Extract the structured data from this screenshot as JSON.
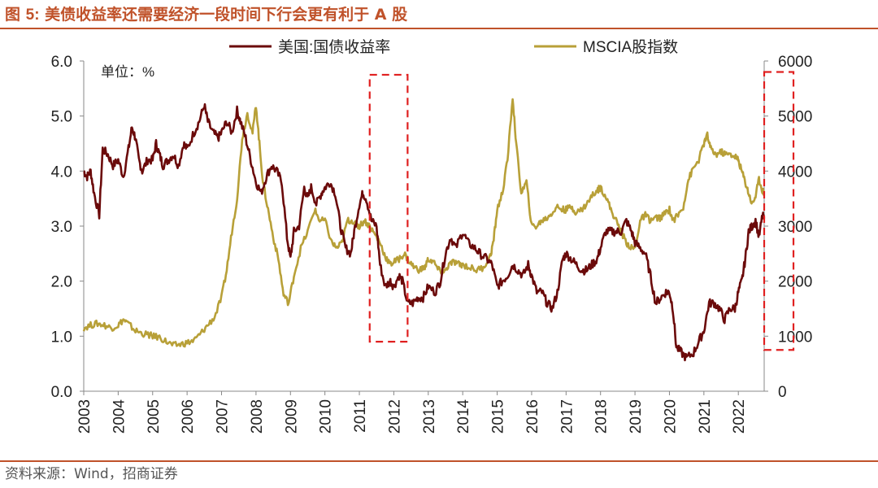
{
  "figure": {
    "title_prefix": "图 ",
    "title_number": "5:",
    "title_text": " 美债收益率还需要经济一段时间下行会更有利于 A 股",
    "source": "资料来源：Wind，招商证券"
  },
  "colors": {
    "accent": "#C0522A",
    "us_yield": "#6B0A0A",
    "msci": "#B8A038",
    "highlight_box": "#E02020"
  },
  "chart_data": {
    "type": "line",
    "unit_label": "单位：%",
    "legend_position": "top",
    "grid": false,
    "x_ticks": [
      "2003",
      "2004",
      "2005",
      "2006",
      "2007",
      "2008",
      "2009",
      "2010",
      "2011",
      "2012",
      "2013",
      "2014",
      "2015",
      "2016",
      "2017",
      "2018",
      "2019",
      "2020",
      "2021",
      "2022"
    ],
    "xlim": [
      2003.0,
      2022.75
    ],
    "y_left": {
      "ticks": [
        "0.0",
        "1.0",
        "2.0",
        "3.0",
        "4.0",
        "5.0",
        "6.0"
      ],
      "range": [
        0,
        6
      ]
    },
    "y_right": {
      "ticks": [
        "0",
        "1000",
        "2000",
        "3000",
        "4000",
        "5000",
        "6000"
      ],
      "range": [
        0,
        6000
      ]
    },
    "series": [
      {
        "name": "美国:国债收益率",
        "axis": "left",
        "points": [
          [
            2003.0,
            4.0
          ],
          [
            2003.1,
            3.9
          ],
          [
            2003.2,
            4.0
          ],
          [
            2003.3,
            3.6
          ],
          [
            2003.45,
            3.2
          ],
          [
            2003.55,
            4.4
          ],
          [
            2003.7,
            4.3
          ],
          [
            2003.85,
            4.1
          ],
          [
            2004.0,
            4.2
          ],
          [
            2004.15,
            3.9
          ],
          [
            2004.3,
            4.4
          ],
          [
            2004.4,
            4.8
          ],
          [
            2004.5,
            4.6
          ],
          [
            2004.6,
            4.2
          ],
          [
            2004.7,
            4.0
          ],
          [
            2004.85,
            4.2
          ],
          [
            2005.0,
            4.2
          ],
          [
            2005.1,
            4.5
          ],
          [
            2005.2,
            4.3
          ],
          [
            2005.3,
            4.1
          ],
          [
            2005.45,
            4.2
          ],
          [
            2005.6,
            4.3
          ],
          [
            2005.75,
            4.1
          ],
          [
            2005.9,
            4.5
          ],
          [
            2006.0,
            4.4
          ],
          [
            2006.2,
            4.7
          ],
          [
            2006.35,
            4.9
          ],
          [
            2006.5,
            5.2
          ],
          [
            2006.6,
            4.9
          ],
          [
            2006.75,
            4.7
          ],
          [
            2006.9,
            4.6
          ],
          [
            2007.0,
            4.7
          ],
          [
            2007.15,
            4.9
          ],
          [
            2007.3,
            4.7
          ],
          [
            2007.45,
            5.1
          ],
          [
            2007.55,
            4.9
          ],
          [
            2007.7,
            4.6
          ],
          [
            2007.85,
            4.2
          ],
          [
            2008.0,
            3.8
          ],
          [
            2008.15,
            3.6
          ],
          [
            2008.3,
            3.9
          ],
          [
            2008.45,
            4.1
          ],
          [
            2008.6,
            4.0
          ],
          [
            2008.75,
            3.8
          ],
          [
            2008.9,
            2.8
          ],
          [
            2009.0,
            2.4
          ],
          [
            2009.1,
            2.9
          ],
          [
            2009.25,
            3.0
          ],
          [
            2009.4,
            3.7
          ],
          [
            2009.5,
            3.5
          ],
          [
            2009.6,
            3.7
          ],
          [
            2009.75,
            3.4
          ],
          [
            2009.9,
            3.6
          ],
          [
            2010.0,
            3.7
          ],
          [
            2010.15,
            3.8
          ],
          [
            2010.3,
            3.6
          ],
          [
            2010.45,
            3.0
          ],
          [
            2010.6,
            2.6
          ],
          [
            2010.75,
            2.5
          ],
          [
            2010.85,
            2.9
          ],
          [
            2011.0,
            3.4
          ],
          [
            2011.1,
            3.6
          ],
          [
            2011.2,
            3.5
          ],
          [
            2011.35,
            3.1
          ],
          [
            2011.5,
            3.0
          ],
          [
            2011.6,
            2.3
          ],
          [
            2011.75,
            1.9
          ],
          [
            2011.9,
            2.0
          ],
          [
            2012.0,
            1.9
          ],
          [
            2012.15,
            2.1
          ],
          [
            2012.25,
            2.0
          ],
          [
            2012.4,
            1.6
          ],
          [
            2012.55,
            1.6
          ],
          [
            2012.7,
            1.7
          ],
          [
            2012.85,
            1.7
          ],
          [
            2013.0,
            1.9
          ],
          [
            2013.2,
            1.8
          ],
          [
            2013.35,
            2.0
          ],
          [
            2013.5,
            2.5
          ],
          [
            2013.65,
            2.8
          ],
          [
            2013.8,
            2.6
          ],
          [
            2014.0,
            2.9
          ],
          [
            2014.15,
            2.7
          ],
          [
            2014.35,
            2.6
          ],
          [
            2014.5,
            2.5
          ],
          [
            2014.7,
            2.4
          ],
          [
            2014.85,
            2.3
          ],
          [
            2015.0,
            1.9
          ],
          [
            2015.15,
            2.0
          ],
          [
            2015.3,
            2.1
          ],
          [
            2015.45,
            2.3
          ],
          [
            2015.6,
            2.2
          ],
          [
            2015.75,
            2.1
          ],
          [
            2015.9,
            2.3
          ],
          [
            2016.0,
            2.1
          ],
          [
            2016.15,
            1.8
          ],
          [
            2016.3,
            1.8
          ],
          [
            2016.45,
            1.6
          ],
          [
            2016.6,
            1.5
          ],
          [
            2016.75,
            1.8
          ],
          [
            2016.9,
            2.4
          ],
          [
            2017.0,
            2.5
          ],
          [
            2017.15,
            2.4
          ],
          [
            2017.3,
            2.3
          ],
          [
            2017.45,
            2.2
          ],
          [
            2017.6,
            2.2
          ],
          [
            2017.75,
            2.3
          ],
          [
            2017.9,
            2.4
          ],
          [
            2018.0,
            2.6
          ],
          [
            2018.15,
            2.9
          ],
          [
            2018.3,
            2.9
          ],
          [
            2018.45,
            2.9
          ],
          [
            2018.6,
            2.9
          ],
          [
            2018.75,
            3.1
          ],
          [
            2018.9,
            2.9
          ],
          [
            2019.0,
            2.7
          ],
          [
            2019.15,
            2.6
          ],
          [
            2019.3,
            2.5
          ],
          [
            2019.45,
            2.1
          ],
          [
            2019.6,
            1.6
          ],
          [
            2019.75,
            1.7
          ],
          [
            2019.9,
            1.8
          ],
          [
            2020.0,
            1.8
          ],
          [
            2020.1,
            1.5
          ],
          [
            2020.2,
            0.8
          ],
          [
            2020.35,
            0.7
          ],
          [
            2020.5,
            0.6
          ],
          [
            2020.7,
            0.7
          ],
          [
            2020.85,
            0.9
          ],
          [
            2021.0,
            1.1
          ],
          [
            2021.15,
            1.6
          ],
          [
            2021.3,
            1.6
          ],
          [
            2021.45,
            1.5
          ],
          [
            2021.6,
            1.3
          ],
          [
            2021.75,
            1.5
          ],
          [
            2021.9,
            1.5
          ],
          [
            2022.0,
            1.8
          ],
          [
            2022.1,
            2.0
          ],
          [
            2022.2,
            2.4
          ],
          [
            2022.3,
            2.9
          ],
          [
            2022.4,
            3.0
          ],
          [
            2022.5,
            3.1
          ],
          [
            2022.6,
            2.8
          ],
          [
            2022.7,
            3.2
          ],
          [
            2022.75,
            3.1
          ]
        ]
      },
      {
        "name": "MSCIA股指数",
        "axis": "right",
        "points": [
          [
            2003.0,
            1150
          ],
          [
            2003.2,
            1200
          ],
          [
            2003.4,
            1230
          ],
          [
            2003.6,
            1200
          ],
          [
            2003.8,
            1150
          ],
          [
            2004.0,
            1200
          ],
          [
            2004.15,
            1300
          ],
          [
            2004.3,
            1220
          ],
          [
            2004.5,
            1100
          ],
          [
            2004.7,
            1050
          ],
          [
            2004.9,
            1020
          ],
          [
            2005.0,
            1000
          ],
          [
            2005.2,
            980
          ],
          [
            2005.4,
            900
          ],
          [
            2005.6,
            830
          ],
          [
            2005.8,
            850
          ],
          [
            2006.0,
            880
          ],
          [
            2006.2,
            920
          ],
          [
            2006.4,
            1050
          ],
          [
            2006.6,
            1200
          ],
          [
            2006.8,
            1350
          ],
          [
            2007.0,
            1700
          ],
          [
            2007.15,
            2200
          ],
          [
            2007.3,
            2900
          ],
          [
            2007.45,
            3500
          ],
          [
            2007.6,
            4600
          ],
          [
            2007.75,
            5050
          ],
          [
            2007.9,
            4700
          ],
          [
            2008.0,
            5200
          ],
          [
            2008.1,
            4500
          ],
          [
            2008.2,
            3800
          ],
          [
            2008.35,
            3300
          ],
          [
            2008.5,
            2800
          ],
          [
            2008.65,
            2400
          ],
          [
            2008.8,
            1750
          ],
          [
            2008.95,
            1600
          ],
          [
            2009.1,
            2100
          ],
          [
            2009.3,
            2600
          ],
          [
            2009.5,
            2900
          ],
          [
            2009.7,
            3300
          ],
          [
            2009.85,
            3100
          ],
          [
            2010.0,
            3100
          ],
          [
            2010.2,
            2700
          ],
          [
            2010.35,
            2600
          ],
          [
            2010.5,
            2700
          ],
          [
            2010.65,
            3100
          ],
          [
            2010.8,
            3100
          ],
          [
            2010.95,
            3000
          ],
          [
            2011.0,
            3000
          ],
          [
            2011.15,
            3100
          ],
          [
            2011.3,
            3000
          ],
          [
            2011.45,
            2850
          ],
          [
            2011.6,
            2700
          ],
          [
            2011.75,
            2450
          ],
          [
            2011.9,
            2300
          ],
          [
            2012.0,
            2350
          ],
          [
            2012.15,
            2400
          ],
          [
            2012.3,
            2500
          ],
          [
            2012.45,
            2350
          ],
          [
            2012.6,
            2250
          ],
          [
            2012.75,
            2200
          ],
          [
            2012.9,
            2250
          ],
          [
            2013.0,
            2400
          ],
          [
            2013.15,
            2350
          ],
          [
            2013.3,
            2200
          ],
          [
            2013.45,
            2150
          ],
          [
            2013.6,
            2300
          ],
          [
            2013.75,
            2350
          ],
          [
            2013.9,
            2300
          ],
          [
            2014.0,
            2300
          ],
          [
            2014.2,
            2250
          ],
          [
            2014.4,
            2200
          ],
          [
            2014.6,
            2250
          ],
          [
            2014.8,
            2450
          ],
          [
            2014.9,
            2750
          ],
          [
            2015.0,
            3300
          ],
          [
            2015.15,
            3600
          ],
          [
            2015.3,
            4200
          ],
          [
            2015.45,
            5350
          ],
          [
            2015.55,
            4500
          ],
          [
            2015.7,
            3600
          ],
          [
            2015.85,
            3800
          ],
          [
            2016.0,
            3000
          ],
          [
            2016.15,
            3000
          ],
          [
            2016.3,
            3100
          ],
          [
            2016.45,
            3150
          ],
          [
            2016.6,
            3250
          ],
          [
            2016.75,
            3350
          ],
          [
            2016.9,
            3300
          ],
          [
            2017.0,
            3300
          ],
          [
            2017.15,
            3350
          ],
          [
            2017.3,
            3250
          ],
          [
            2017.45,
            3300
          ],
          [
            2017.6,
            3400
          ],
          [
            2017.75,
            3550
          ],
          [
            2017.9,
            3650
          ],
          [
            2018.0,
            3700
          ],
          [
            2018.15,
            3550
          ],
          [
            2018.3,
            3300
          ],
          [
            2018.45,
            3100
          ],
          [
            2018.6,
            2900
          ],
          [
            2018.75,
            2700
          ],
          [
            2018.9,
            2600
          ],
          [
            2019.0,
            2600
          ],
          [
            2019.15,
            3100
          ],
          [
            2019.3,
            3200
          ],
          [
            2019.45,
            3100
          ],
          [
            2019.6,
            3150
          ],
          [
            2019.75,
            3150
          ],
          [
            2019.9,
            3250
          ],
          [
            2020.0,
            3300
          ],
          [
            2020.1,
            3100
          ],
          [
            2020.25,
            3200
          ],
          [
            2020.4,
            3350
          ],
          [
            2020.55,
            3850
          ],
          [
            2020.7,
            4050
          ],
          [
            2020.85,
            4200
          ],
          [
            2021.0,
            4500
          ],
          [
            2021.1,
            4650
          ],
          [
            2021.2,
            4400
          ],
          [
            2021.35,
            4300
          ],
          [
            2021.5,
            4350
          ],
          [
            2021.65,
            4300
          ],
          [
            2021.8,
            4300
          ],
          [
            2021.95,
            4250
          ],
          [
            2022.0,
            4200
          ],
          [
            2022.1,
            4000
          ],
          [
            2022.2,
            3800
          ],
          [
            2022.3,
            3600
          ],
          [
            2022.4,
            3400
          ],
          [
            2022.5,
            3550
          ],
          [
            2022.6,
            3850
          ],
          [
            2022.7,
            3650
          ],
          [
            2022.75,
            3600
          ]
        ]
      }
    ],
    "highlight_regions": [
      {
        "x_range": [
          2011.3,
          2012.4
        ],
        "y_left_range": [
          0.9,
          5.75
        ]
      },
      {
        "x_range": [
          2022.75,
          2023.6
        ],
        "y_left_range": [
          0.75,
          5.8
        ]
      }
    ]
  }
}
